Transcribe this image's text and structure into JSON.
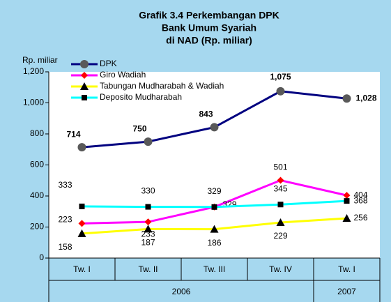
{
  "chart_data": {
    "type": "line",
    "title": [
      "Grafik 3.4 Perkembangan DPK",
      "Bank Umum Syariah",
      "di NAD (Rp. miliar)"
    ],
    "y_label": "Rp. miliar",
    "categories": [
      "Tw. I",
      "Tw. II",
      "Tw. III",
      "Tw. IV",
      "Tw. I"
    ],
    "x_groups": [
      {
        "label": "2006",
        "count": 4
      },
      {
        "label": "2007",
        "count": 1
      }
    ],
    "ylim": [
      0,
      1200
    ],
    "yticks": [
      0,
      200,
      400,
      600,
      800,
      {
        "value": 1000,
        "label": "1,000"
      },
      {
        "value": 1200,
        "label": "1,200"
      }
    ],
    "legend": "top-left",
    "series": [
      {
        "name": "DPK",
        "color": "#000080",
        "marker": "circle",
        "marker_color": "#595959",
        "values": [
          714,
          750,
          843,
          1075,
          1028
        ],
        "value_labels": [
          "714",
          "750",
          "843",
          "1,075",
          "1,028"
        ]
      },
      {
        "name": "Giro Wadiah",
        "color": "#ff00ff",
        "marker": "diamond",
        "marker_color": "#ff0000",
        "values": [
          223,
          233,
          329,
          501,
          404
        ]
      },
      {
        "name": "Tabungan Mudharabah & Wadiah",
        "color": "#ffff00",
        "marker": "triangle",
        "marker_color": "#000000",
        "values": [
          158,
          187,
          186,
          229,
          256
        ]
      },
      {
        "name": "Deposito Mudharabah",
        "color": "#00ffff",
        "marker": "square",
        "marker_color": "#000000",
        "values": [
          333,
          330,
          329,
          345,
          368
        ]
      }
    ]
  }
}
